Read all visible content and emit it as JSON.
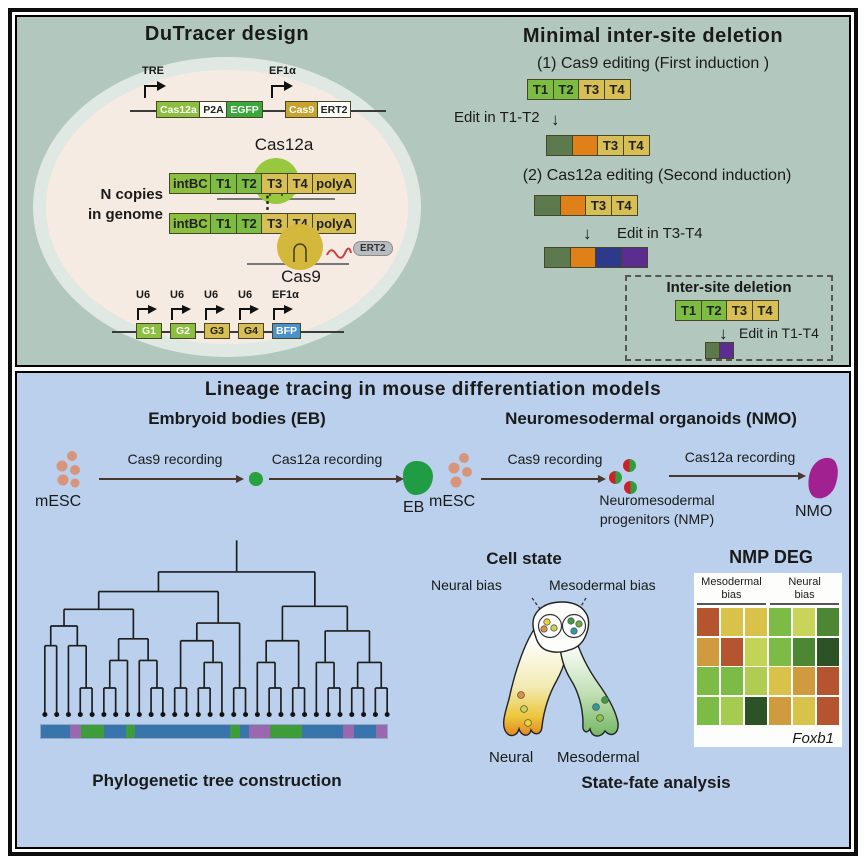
{
  "design": {
    "title": "DuTracer design",
    "tre": "TRE",
    "ef1a": "EF1α",
    "u6": "U6",
    "construct1": [
      "Cas12a",
      "P2A",
      "EGFP"
    ],
    "construct2": [
      "Cas9",
      "ERT2"
    ],
    "cas12a_label": "Cas12a",
    "n_copies_line1": "N copies",
    "n_copies_line2": "in genome",
    "array": [
      "intBC",
      "T1",
      "T2",
      "T3",
      "T4",
      "polyA"
    ],
    "ellipsis": "⋮",
    "cas9_label": "Cas9",
    "ert2_label": "ERT2",
    "guides": [
      "G1",
      "G2",
      "G3",
      "G4"
    ],
    "bfp": "BFP"
  },
  "deletion": {
    "title": "Minimal inter-site deletion",
    "step1": "(1) Cas9 editing (First induction )",
    "array1": [
      "T1",
      "T2",
      "T3",
      "T4"
    ],
    "edit1": "Edit in T1-T2",
    "down_arrow": "↓",
    "array2": [
      "",
      "",
      "T3",
      "T4"
    ],
    "step2": "(2) Cas12a editing (Second induction)",
    "edit2": "Edit in T3-T4",
    "array3": [
      "",
      "",
      "",
      ""
    ],
    "inset_title": "Inter-site deletion",
    "inset_array": [
      "T1",
      "T2",
      "T3",
      "T4"
    ],
    "edit3": "Edit in T1-T4",
    "inset_result": [
      "",
      ""
    ]
  },
  "lineage": {
    "title": "Lineage tracing in mouse differentiation models",
    "eb_title": "Embryoid bodies (EB)",
    "nmo_title": "Neuromesodermal organoids (NMO)",
    "cas9_recording": "Cas9 recording",
    "cas12a_recording": "Cas12a recording",
    "mesc": "mESC",
    "eb": "EB",
    "nmp_line1": "Neuromesodermal",
    "nmp_line2": "progenitors (NMP)",
    "nmo": "NMO",
    "tree_caption": "Phylogenetic tree construction",
    "cell_state": "Cell state",
    "neural_bias": "Neural bias",
    "mesodermal_bias": "Mesodermal bias",
    "neural": "Neural",
    "mesodermal": "Mesodermal",
    "heatmap_title": "NMP DEG",
    "hm_col1": "Mesodermal",
    "hm_col2": "Neural",
    "hm_bias": "bias",
    "gene": "Foxb1",
    "fate_caption": "State-fate analysis"
  },
  "heatmap_cells": [
    [
      "#b5552f",
      "#d8c249",
      "#d8c249",
      "#7cbb45",
      "#c8d45a",
      "#4e8733"
    ],
    [
      "#d09a3e",
      "#b5552f",
      "#c3d355",
      "#7cbb45",
      "#4e8733",
      "#2d5226"
    ],
    [
      "#7cbb45",
      "#7cbb45",
      "#b0cc52",
      "#d8c249",
      "#d09a3e",
      "#b5552f"
    ],
    [
      "#7cbb45",
      "#a5cc4e",
      "#2d5226",
      "#d09a3e",
      "#d8c249",
      "#b5552f"
    ]
  ],
  "bar_segments": [
    {
      "color": "#3a74ad",
      "w": 8.5
    },
    {
      "color": "#9a68ae",
      "w": 3.0
    },
    {
      "color": "#3f9c3a",
      "w": 6.8
    },
    {
      "color": "#3a74ad",
      "w": 6.2
    },
    {
      "color": "#3f9c3a",
      "w": 2.7
    },
    {
      "color": "#3a74ad",
      "w": 27.4
    },
    {
      "color": "#3f9c3a",
      "w": 2.9
    },
    {
      "color": "#3a74ad",
      "w": 2.7
    },
    {
      "color": "#9a68ae",
      "w": 5.9
    },
    {
      "color": "#3f9c3a",
      "w": 9.4
    },
    {
      "color": "#3a74ad",
      "w": 11.8
    },
    {
      "color": "#9a68ae",
      "w": 3.2
    },
    {
      "color": "#3a74ad",
      "w": 6.3
    },
    {
      "color": "#9a68ae",
      "w": 3.2
    }
  ],
  "colors": {
    "panel_top_bg": "#b2c8be",
    "panel_bottom_bg": "#bad0ec",
    "cell_fill": "#f6ebe2",
    "cas12a_protein": "#97c83e",
    "cas9_protein": "#d4b83c",
    "mesc_dot": "#d9957c",
    "eb_blob": "#1f9c44",
    "nmo_blob": "#a0218f",
    "tree_blue": "#3a74ad",
    "tree_purple": "#9a68ae",
    "tree_green": "#3f9c3a"
  }
}
